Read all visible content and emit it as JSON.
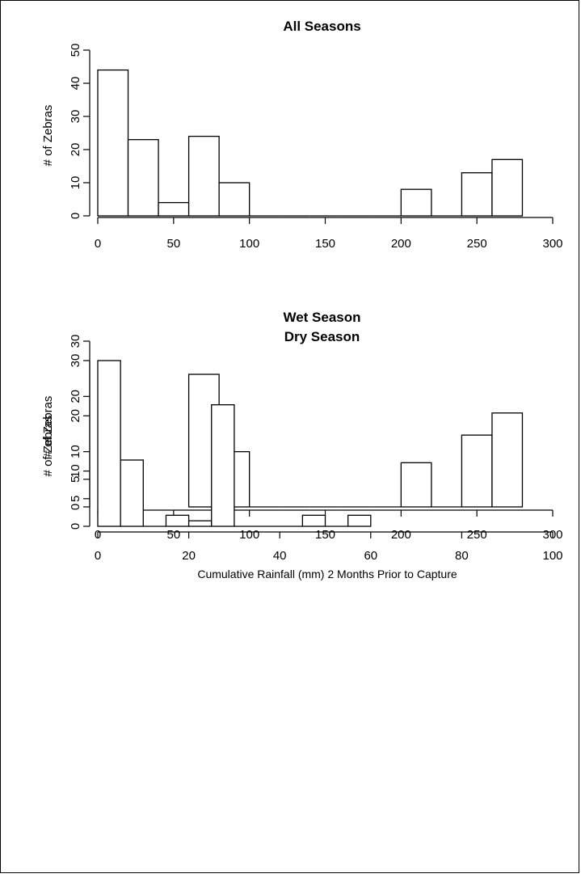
{
  "chart_data": [
    {
      "type": "bar",
      "title": "All Seasons",
      "xlabel": "",
      "ylabel": "# of Zebras",
      "xlim": [
        0,
        300
      ],
      "ylim": [
        0,
        50
      ],
      "xticks": [
        0,
        50,
        100,
        150,
        200,
        250,
        300
      ],
      "yticks": [
        0,
        10,
        20,
        30,
        40,
        50
      ],
      "bins": [
        {
          "x0": 0,
          "x1": 20,
          "count": 44
        },
        {
          "x0": 20,
          "x1": 40,
          "count": 23
        },
        {
          "x0": 40,
          "x1": 60,
          "count": 4
        },
        {
          "x0": 60,
          "x1": 80,
          "count": 24
        },
        {
          "x0": 80,
          "x1": 100,
          "count": 10
        },
        {
          "x0": 100,
          "x1": 120,
          "count": 0
        },
        {
          "x0": 120,
          "x1": 140,
          "count": 0
        },
        {
          "x0": 140,
          "x1": 160,
          "count": 0
        },
        {
          "x0": 160,
          "x1": 180,
          "count": 0
        },
        {
          "x0": 180,
          "x1": 200,
          "count": 0
        },
        {
          "x0": 200,
          "x1": 220,
          "count": 8
        },
        {
          "x0": 220,
          "x1": 240,
          "count": 0
        },
        {
          "x0": 240,
          "x1": 260,
          "count": 13
        },
        {
          "x0": 260,
          "x1": 280,
          "count": 17
        }
      ],
      "grid": false
    },
    {
      "type": "bar",
      "title": "Wet Season",
      "xlabel": "",
      "ylabel": "# of Zebras",
      "xlim": [
        0,
        300
      ],
      "ylim": [
        0,
        30
      ],
      "xticks": [
        0,
        50,
        100,
        150,
        200,
        250,
        300
      ],
      "yticks": [
        0,
        5,
        10,
        20,
        30
      ],
      "bins": [
        {
          "x0": 60,
          "x1": 80,
          "count": 24
        },
        {
          "x0": 80,
          "x1": 100,
          "count": 10
        },
        {
          "x0": 100,
          "x1": 120,
          "count": 0
        },
        {
          "x0": 120,
          "x1": 140,
          "count": 0
        },
        {
          "x0": 140,
          "x1": 160,
          "count": 0
        },
        {
          "x0": 160,
          "x1": 180,
          "count": 0
        },
        {
          "x0": 180,
          "x1": 200,
          "count": 0
        },
        {
          "x0": 200,
          "x1": 220,
          "count": 8
        },
        {
          "x0": 220,
          "x1": 240,
          "count": 0
        },
        {
          "x0": 240,
          "x1": 260,
          "count": 13
        },
        {
          "x0": 260,
          "x1": 280,
          "count": 17
        }
      ],
      "grid": false
    },
    {
      "type": "bar",
      "title": "Dry Season",
      "xlabel": "Cumulative Rainfall (mm) 2 Months Prior to Capture",
      "ylabel": "# of Zebras",
      "xlim": [
        0,
        100
      ],
      "ylim": [
        0,
        30
      ],
      "xticks": [
        0,
        20,
        40,
        60,
        80,
        100
      ],
      "yticks": [
        0,
        5,
        10,
        20,
        30
      ],
      "bins": [
        {
          "x0": 0,
          "x1": 5,
          "count": 30
        },
        {
          "x0": 5,
          "x1": 10,
          "count": 12
        },
        {
          "x0": 10,
          "x1": 15,
          "count": 0
        },
        {
          "x0": 15,
          "x1": 20,
          "count": 2
        },
        {
          "x0": 20,
          "x1": 25,
          "count": 1
        },
        {
          "x0": 25,
          "x1": 30,
          "count": 22
        },
        {
          "x0": 30,
          "x1": 35,
          "count": 0
        },
        {
          "x0": 35,
          "x1": 40,
          "count": 0
        },
        {
          "x0": 40,
          "x1": 45,
          "count": 0
        },
        {
          "x0": 45,
          "x1": 50,
          "count": 2
        },
        {
          "x0": 50,
          "x1": 55,
          "count": 0
        },
        {
          "x0": 55,
          "x1": 60,
          "count": 2
        }
      ],
      "grid": false
    }
  ]
}
